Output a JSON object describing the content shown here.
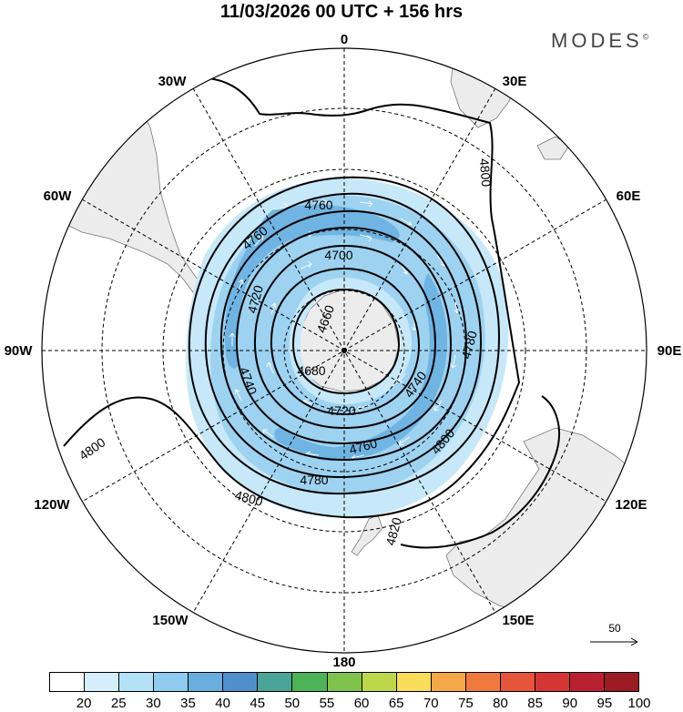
{
  "title": "11/03/2026  00 UTC  + 156 hrs",
  "brand": "MODES",
  "brand_mark": "©",
  "longitude_labels": {
    "lon_0": "0",
    "lon_30e": "30E",
    "lon_60e": "60E",
    "lon_90e": "90E",
    "lon_120e": "120E",
    "lon_150e": "150E",
    "lon_180": "180",
    "lon_150w": "150W",
    "lon_120w": "120W",
    "lon_90w": "90W",
    "lon_60w": "60W",
    "lon_30w": "30W"
  },
  "contour_labels": {
    "c4660": "4660",
    "c4680": "4680",
    "c4700": "4700",
    "c4720a": "4720",
    "c4720b": "4720",
    "c4740a": "4740",
    "c4740b": "4740",
    "c4760a": "4760",
    "c4760b": "4760",
    "c4760c": "4760",
    "c4780a": "4780",
    "c4780b": "4780",
    "c4800a": "4800",
    "c4800b": "4800",
    "c4800c": "4800",
    "c4800d": "4800",
    "c4820": "4820"
  },
  "reference_vector": "50",
  "colorbar": {
    "ticks": [
      "20",
      "25",
      "30",
      "35",
      "40",
      "45",
      "50",
      "55",
      "60",
      "65",
      "70",
      "75",
      "80",
      "85",
      "90",
      "95",
      "100"
    ],
    "colors": [
      "#ffffff",
      "#d4effb",
      "#b3e1f6",
      "#8fcbee",
      "#6aaede",
      "#4f8fcb",
      "#4aa497",
      "#4cb356",
      "#80c34c",
      "#bcd84a",
      "#f8dc5a",
      "#f5a848",
      "#ee7b3d",
      "#e4553a",
      "#d43636",
      "#b92130",
      "#9a1b22"
    ]
  },
  "colors": {
    "land": "#ececec",
    "coast": "#777777",
    "contour": "#000000",
    "grid": "#000000",
    "wind_light": "#c6e8f8",
    "wind_mid": "#9dd2f0",
    "wind_strong": "#6fb4e2"
  }
}
